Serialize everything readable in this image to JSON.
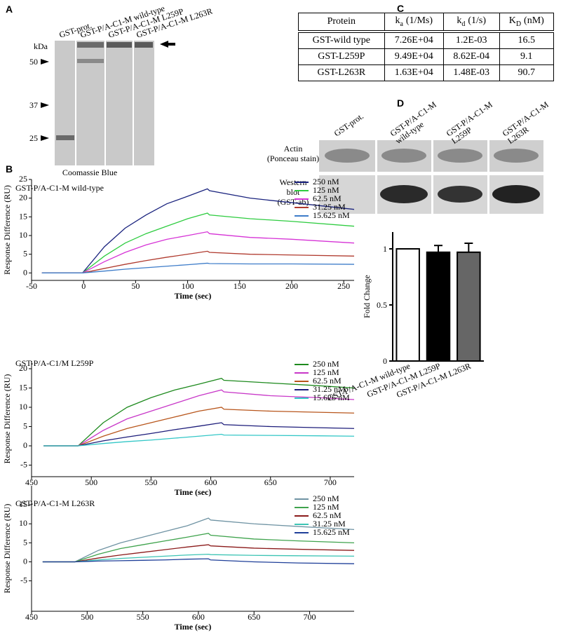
{
  "panels": {
    "A": {
      "label": "A",
      "lanes": [
        "GST-prot.",
        "GST-P/A-C1-M wild-type",
        "GST-P/A-C1-M L259P",
        "GST-P/A-C1-M L263R"
      ],
      "unit": "kDa",
      "markers": [
        50,
        37,
        25
      ],
      "stain": "Coomassie Blue"
    },
    "B": {
      "label": "B"
    },
    "C": {
      "label": "C",
      "header": [
        {
          "main": "Protein"
        },
        {
          "main": "k",
          "sub": "a",
          "rest": "(1/Ms)"
        },
        {
          "main": "k",
          "sub": "d",
          "rest": "(1/s)"
        },
        {
          "main": "K",
          "sub": "D",
          "rest": "(nM)"
        }
      ],
      "rows": [
        [
          "GST-wild type",
          "7.26E+04",
          "1.2E-03",
          "16.5"
        ],
        [
          "GST-L259P",
          "9.49E+04",
          "8.62E-04",
          "9.1"
        ],
        [
          "GST-L263R",
          "1.63E+04",
          "1.48E-03",
          "90.7"
        ]
      ]
    },
    "D": {
      "label": "D",
      "lanes": [
        [
          "GST-prot."
        ],
        [
          "GST-P/A-C1-M",
          "wild-type"
        ],
        [
          "GST-P/A-C1-M",
          "L259P"
        ],
        [
          "GST-P/A-C1-M",
          "L263R"
        ]
      ],
      "rows": [
        [
          "Actin",
          "(Ponceau stain)"
        ],
        [
          "Western",
          "blot",
          "(GST-ab)"
        ]
      ]
    }
  },
  "chart_data": [
    {
      "type": "line",
      "title": "GST-P/A-C1-M wild-type",
      "xlabel": "Time (sec)",
      "ylabel": "Response Difference (RU)",
      "xlim": [
        -50,
        260
      ],
      "ylim": [
        -2,
        25
      ],
      "xticks": [
        -50,
        0,
        50,
        100,
        150,
        200,
        250
      ],
      "yticks": [
        0,
        5,
        10,
        15,
        20,
        25
      ],
      "x": [
        -40,
        -1,
        20,
        40,
        60,
        80,
        100,
        119,
        121,
        160,
        200,
        260
      ],
      "series": [
        {
          "name": "250 nM",
          "color": "#1a237e",
          "values": [
            0,
            0,
            7,
            12,
            15.5,
            18.5,
            20.5,
            22.5,
            22,
            20,
            18.8,
            17
          ]
        },
        {
          "name": "125 nM",
          "color": "#2ecc40",
          "values": [
            0,
            0,
            4.5,
            8,
            10.5,
            12.5,
            14.5,
            16,
            15.5,
            14.5,
            13.8,
            12.5
          ]
        },
        {
          "name": "62.5 nM",
          "color": "#d633d6",
          "values": [
            0,
            0,
            3,
            5.5,
            7.5,
            9,
            10,
            11,
            10.5,
            9.5,
            9,
            8
          ]
        },
        {
          "name": "31.25 nM",
          "color": "#b03a2e",
          "values": [
            0,
            0,
            1.2,
            2.3,
            3.3,
            4.2,
            5,
            5.8,
            5.5,
            5,
            4.8,
            4.5
          ]
        },
        {
          "name": "15.625 nM",
          "color": "#3d7cc9",
          "values": [
            0,
            0,
            0.5,
            1,
            1.4,
            1.8,
            2.2,
            2.6,
            2.5,
            2.4,
            2.4,
            2.3
          ]
        }
      ]
    },
    {
      "type": "line",
      "title": "GST-P/A-C1/M L259P",
      "xlabel": "Time (sec)",
      "ylabel": "Response Difference (RU)",
      "xlim": [
        450,
        720
      ],
      "ylim": [
        -8,
        22
      ],
      "xticks": [
        450,
        500,
        550,
        600,
        650,
        700
      ],
      "yticks": [
        -5,
        0,
        5,
        10,
        15,
        20
      ],
      "x": [
        460,
        489,
        510,
        530,
        550,
        570,
        590,
        609,
        611,
        650,
        690,
        720
      ],
      "series": [
        {
          "name": "250 nM",
          "color": "#1e8a1e",
          "values": [
            0,
            0,
            6,
            10,
            12.5,
            14.5,
            16,
            17.5,
            17,
            16.3,
            15.6,
            15
          ]
        },
        {
          "name": "125 nM",
          "color": "#c837c8",
          "values": [
            0,
            0,
            4,
            7,
            9,
            11,
            13,
            14.5,
            14,
            13,
            12.5,
            12
          ]
        },
        {
          "name": "62.5 nM",
          "color": "#b8561c",
          "values": [
            0,
            0,
            2.5,
            4.5,
            6,
            7.5,
            9,
            10,
            9.5,
            9,
            8.7,
            8.5
          ]
        },
        {
          "name": "31.25 nM",
          "color": "#1c1c7a",
          "values": [
            0,
            0,
            1.3,
            2.3,
            3.2,
            4.2,
            5.1,
            6,
            5.5,
            5,
            4.7,
            4.5
          ]
        },
        {
          "name": "15.625 nM",
          "color": "#33c7c7",
          "values": [
            0,
            0,
            0.6,
            1.1,
            1.5,
            2,
            2.5,
            3,
            2.8,
            2.7,
            2.6,
            2.5
          ]
        }
      ]
    },
    {
      "type": "line",
      "title": "GST-P/A-C1-M L263R",
      "xlabel": "Time (sec)",
      "ylabel": "Response Difference (RU)",
      "xlim": [
        450,
        740
      ],
      "ylim": [
        -13,
        20
      ],
      "xticks": [
        450,
        500,
        550,
        600,
        650,
        700
      ],
      "yticks": [
        -5,
        0,
        5,
        10,
        15
      ],
      "x": [
        460,
        489,
        510,
        530,
        550,
        570,
        590,
        609,
        611,
        650,
        690,
        740
      ],
      "series": [
        {
          "name": "250 nM",
          "color": "#6f93a3",
          "values": [
            0,
            0,
            3,
            5,
            6.5,
            8,
            9.5,
            11.5,
            11,
            10,
            9.3,
            8.5
          ]
        },
        {
          "name": "125 nM",
          "color": "#3fa34d",
          "values": [
            0,
            0,
            2,
            3.5,
            4.5,
            5.5,
            6.5,
            7.5,
            7,
            6,
            5.5,
            5
          ]
        },
        {
          "name": "62.5 nM",
          "color": "#8b1a1a",
          "values": [
            0,
            0,
            1,
            1.8,
            2.5,
            3.2,
            3.9,
            4.5,
            4.2,
            3.6,
            3.3,
            3
          ]
        },
        {
          "name": "31.25 nM",
          "color": "#3cc4b4",
          "values": [
            0,
            0,
            0.5,
            0.9,
            1.2,
            1.5,
            1.8,
            2,
            1.9,
            1.7,
            1.6,
            1.5
          ]
        },
        {
          "name": "15.625 nM",
          "color": "#1f3f99",
          "values": [
            0,
            0,
            0.2,
            0.3,
            0.4,
            0.5,
            0.7,
            0.8,
            0.5,
            0,
            -0.3,
            -0.5
          ]
        }
      ]
    },
    {
      "type": "bar",
      "ylabel": "Fold Change",
      "categories": [
        "GST-P/A-C1-M wild-type",
        "GST-P/A-C1-M L259P",
        "GST-P/A-C1-M L263R"
      ],
      "values": [
        1,
        0.97,
        0.97
      ],
      "errors": [
        null,
        0.06,
        0.08
      ],
      "colors": [
        "#ffffff",
        "#000000",
        "#666666"
      ],
      "ylim": [
        0,
        1.15
      ],
      "yticks": [
        0,
        0.5,
        1
      ]
    }
  ]
}
